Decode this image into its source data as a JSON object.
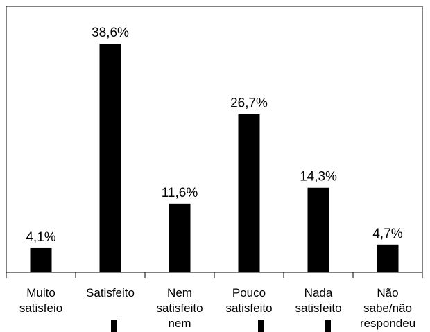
{
  "chart_data": {
    "type": "bar",
    "categories": [
      [
        "Muito",
        "satisfeio"
      ],
      [
        "Satisfeito"
      ],
      [
        "Nem",
        "satisfeito",
        "nem"
      ],
      [
        "Pouco",
        "satisfeito"
      ],
      [
        "Nada",
        "satisfeito"
      ],
      [
        "Não",
        "sabe/não",
        "respondeu"
      ]
    ],
    "values": [
      4.1,
      38.6,
      11.6,
      26.7,
      14.3,
      4.7
    ],
    "data_labels": [
      "4,1%",
      "38,6%",
      "11,6%",
      "26,7%",
      "14,3%",
      "4,7%"
    ],
    "ylim": [
      0,
      44
    ],
    "grid": false,
    "legend": "none",
    "bar_color": "#000000",
    "axis_color": "#000000"
  }
}
